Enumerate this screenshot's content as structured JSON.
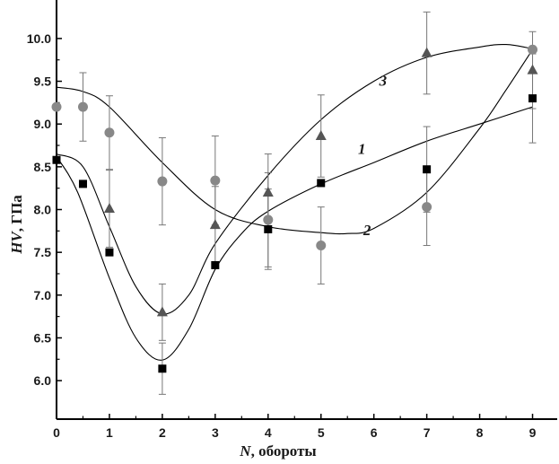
{
  "chart_data": {
    "type": "scatter",
    "xlabel_italic": "N",
    "xlabel_rest": ", обороты",
    "ylabel_italic": "HV",
    "ylabel_rest": ", ГПа",
    "xlim": [
      0,
      9.5
    ],
    "ylim": [
      5.55,
      10.45
    ],
    "x_ticks": [
      0,
      1,
      2,
      3,
      4,
      5,
      6,
      7,
      8,
      9
    ],
    "y_ticks": [
      6.0,
      6.5,
      7.0,
      7.5,
      8.0,
      8.5,
      9.0,
      9.5,
      10.0
    ],
    "grid": false,
    "series": [
      {
        "name": "1",
        "marker": "square",
        "color": "#000000",
        "x": [
          0,
          0.5,
          1,
          2,
          3,
          4,
          5,
          7,
          9
        ],
        "y": [
          8.58,
          8.3,
          7.5,
          6.14,
          7.35,
          7.77,
          8.31,
          8.47,
          9.3
        ],
        "err": [
          0.0,
          0.0,
          0.0,
          0.3,
          0.0,
          0.47,
          0.0,
          0.5,
          0.52
        ],
        "curve": [
          [
            0,
            8.62
          ],
          [
            0.4,
            8.2
          ],
          [
            1,
            7.2
          ],
          [
            1.5,
            6.5
          ],
          [
            2,
            6.24
          ],
          [
            2.5,
            6.6
          ],
          [
            3,
            7.3
          ],
          [
            3.5,
            7.72
          ],
          [
            4,
            7.98
          ],
          [
            5,
            8.3
          ],
          [
            6,
            8.55
          ],
          [
            7,
            8.8
          ],
          [
            8,
            9.0
          ],
          [
            9,
            9.2
          ]
        ]
      },
      {
        "name": "2",
        "marker": "circle",
        "color": "#888888",
        "x": [
          0,
          0.5,
          1,
          2,
          3,
          4,
          5,
          7,
          9
        ],
        "y": [
          9.2,
          9.2,
          8.9,
          8.33,
          8.34,
          7.88,
          7.58,
          8.03,
          9.87
        ],
        "err": [
          0.0,
          0.4,
          0.43,
          0.51,
          0.52,
          0.55,
          0.45,
          0.45,
          0.0
        ],
        "curve": [
          [
            0,
            9.43
          ],
          [
            0.5,
            9.38
          ],
          [
            1,
            9.2
          ],
          [
            2,
            8.55
          ],
          [
            3,
            8.0
          ],
          [
            4,
            7.8
          ],
          [
            5,
            7.73
          ],
          [
            5.5,
            7.72
          ],
          [
            6,
            7.78
          ],
          [
            7,
            8.2
          ],
          [
            8,
            8.95
          ],
          [
            8.5,
            9.4
          ],
          [
            9,
            9.87
          ]
        ]
      },
      {
        "name": "3",
        "marker": "triangle",
        "color": "#555555",
        "x": [
          1,
          2,
          3,
          4,
          5,
          7,
          9
        ],
        "y": [
          8.01,
          6.8,
          7.82,
          8.2,
          8.86,
          9.83,
          9.63
        ],
        "err": [
          0.45,
          0.33,
          0.45,
          0.45,
          0.48,
          0.48,
          0.45
        ],
        "curve": [
          [
            0,
            8.65
          ],
          [
            0.5,
            8.5
          ],
          [
            1,
            7.8
          ],
          [
            1.5,
            7.1
          ],
          [
            2,
            6.78
          ],
          [
            2.5,
            7.0
          ],
          [
            3,
            7.6
          ],
          [
            4,
            8.4
          ],
          [
            5,
            9.05
          ],
          [
            6,
            9.5
          ],
          [
            7,
            9.78
          ],
          [
            8,
            9.9
          ],
          [
            8.5,
            9.93
          ],
          [
            9,
            9.88
          ]
        ]
      }
    ]
  }
}
